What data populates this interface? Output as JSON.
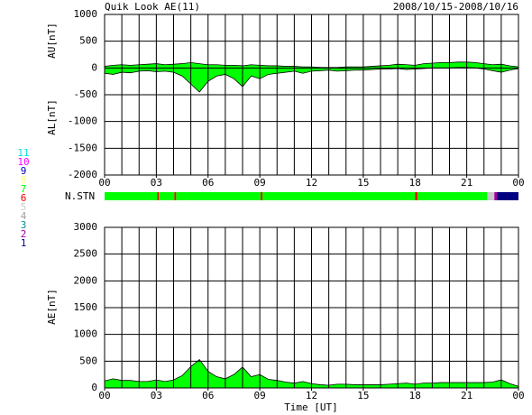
{
  "chart_data": [
    {
      "type": "area",
      "title": "Quik Look AE(11)",
      "date_range": "2008/10/15-2008/10/16",
      "ylabel_upper": "AU[nT]",
      "ylabel_lower": "AL[nT]",
      "x": [
        0,
        0.5,
        1,
        1.5,
        2,
        2.5,
        3,
        3.5,
        4,
        4.5,
        5,
        5.5,
        6,
        6.5,
        7,
        7.5,
        8,
        8.5,
        9,
        9.5,
        10,
        10.5,
        11,
        11.5,
        12,
        12.5,
        13,
        13.5,
        14,
        14.5,
        15,
        15.5,
        16,
        16.5,
        17,
        17.5,
        18,
        18.5,
        19,
        19.5,
        20,
        20.5,
        21,
        21.5,
        22,
        22.5,
        23,
        23.5,
        24
      ],
      "xlim": [
        0,
        24
      ],
      "xticks": [
        {
          "value": 0,
          "label": "00"
        },
        {
          "value": 3,
          "label": "03"
        },
        {
          "value": 6,
          "label": "06"
        },
        {
          "value": 9,
          "label": "09"
        },
        12,
        15,
        18,
        21,
        {
          "value": 24,
          "label": "00"
        }
      ],
      "xgrid": [
        0,
        1,
        2,
        3,
        4,
        5,
        6,
        7,
        8,
        9,
        10,
        11,
        12,
        13,
        14,
        15,
        16,
        17,
        18,
        19,
        20,
        21,
        22,
        23,
        24
      ],
      "ylim": [
        -2000,
        1000
      ],
      "yticks": [
        -2000,
        -1500,
        -1000,
        -500,
        0,
        500,
        1000
      ],
      "grid": true,
      "series": [
        {
          "name": "AU",
          "color": "#00ff00",
          "values": [
            30,
            50,
            60,
            50,
            60,
            70,
            80,
            60,
            70,
            80,
            100,
            80,
            60,
            60,
            50,
            50,
            40,
            60,
            50,
            40,
            40,
            30,
            30,
            20,
            20,
            10,
            10,
            10,
            20,
            20,
            20,
            30,
            40,
            50,
            70,
            60,
            50,
            80,
            90,
            100,
            100,
            110,
            110,
            100,
            80,
            60,
            70,
            40,
            20
          ]
        },
        {
          "name": "AL",
          "color": "#00ff00",
          "values": [
            -100,
            -120,
            -80,
            -90,
            -60,
            -50,
            -70,
            -60,
            -80,
            -150,
            -300,
            -450,
            -250,
            -150,
            -120,
            -200,
            -350,
            -150,
            -200,
            -120,
            -100,
            -80,
            -60,
            -100,
            -60,
            -50,
            -40,
            -60,
            -50,
            -40,
            -40,
            -30,
            -20,
            -20,
            -10,
            -30,
            -20,
            -10,
            0,
            0,
            0,
            10,
            10,
            0,
            -20,
            -50,
            -80,
            -40,
            -10
          ]
        }
      ]
    },
    {
      "type": "strip",
      "label": "N.STN",
      "xlim": [
        0,
        24
      ],
      "edges": [
        0,
        3.05,
        3.15,
        4.05,
        4.15,
        9.05,
        9.15,
        18.0,
        18.15,
        22.2,
        22.6,
        22.75,
        24
      ],
      "values": [
        7,
        6,
        7,
        6,
        7,
        6,
        7,
        6,
        7,
        5,
        2,
        1
      ],
      "legend": {
        "labels": [
          "11",
          "10",
          "9",
          "8",
          "7",
          "6",
          "5",
          "4",
          "3",
          "2",
          "1"
        ],
        "colors": [
          "#00e0e0",
          "#ff00ff",
          "#0000c0",
          "#ffff80",
          "#00ff00",
          "#ff0000",
          "#c8c8c8",
          "#a0a0a0",
          "#009090",
          "#a000a0",
          "#000080"
        ]
      }
    },
    {
      "type": "area",
      "ylabel": "AE[nT]",
      "xlabel": "Time [UT]",
      "x": [
        0,
        0.5,
        1,
        1.5,
        2,
        2.5,
        3,
        3.5,
        4,
        4.5,
        5,
        5.5,
        6,
        6.5,
        7,
        7.5,
        8,
        8.5,
        9,
        9.5,
        10,
        10.5,
        11,
        11.5,
        12,
        12.5,
        13,
        13.5,
        14,
        14.5,
        15,
        15.5,
        16,
        16.5,
        17,
        17.5,
        18,
        18.5,
        19,
        19.5,
        20,
        20.5,
        21,
        21.5,
        22,
        22.5,
        23,
        23.5,
        24
      ],
      "xlim": [
        0,
        24
      ],
      "xticks": [
        {
          "value": 0,
          "label": "00"
        },
        {
          "value": 3,
          "label": "03"
        },
        {
          "value": 6,
          "label": "06"
        },
        {
          "value": 9,
          "label": "09"
        },
        12,
        15,
        18,
        21,
        {
          "value": 24,
          "label": "00"
        }
      ],
      "xgrid": [
        0,
        1,
        2,
        3,
        4,
        5,
        6,
        7,
        8,
        9,
        10,
        11,
        12,
        13,
        14,
        15,
        16,
        17,
        18,
        19,
        20,
        21,
        22,
        23,
        24
      ],
      "ylim": [
        0,
        3000
      ],
      "yticks": [
        0,
        500,
        1000,
        1500,
        2000,
        2500,
        3000
      ],
      "grid": true,
      "series": [
        {
          "name": "AE",
          "color": "#00ff00",
          "values": [
            130,
            170,
            140,
            140,
            120,
            120,
            150,
            120,
            150,
            230,
            400,
            530,
            310,
            210,
            170,
            250,
            390,
            210,
            250,
            160,
            140,
            110,
            90,
            120,
            80,
            60,
            50,
            70,
            70,
            60,
            60,
            60,
            60,
            70,
            80,
            90,
            70,
            90,
            90,
            100,
            100,
            100,
            100,
            100,
            100,
            110,
            150,
            80,
            30
          ]
        }
      ]
    }
  ]
}
